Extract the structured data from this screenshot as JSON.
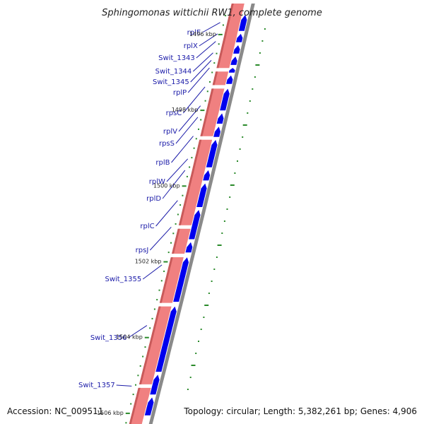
{
  "title": "Sphingomonas wittichii RW1, complete genome",
  "accession": "Accession: NC_009511",
  "topology": "Topology: circular; Length: 5,382,261 bp; Genes: 4,906",
  "colors": {
    "rrna_track": "#f08080",
    "rrna_edge": "#c85a5a",
    "gene_blue": "#0000ee",
    "backbone": "#8a8a8a",
    "tick_green": "#2a8a2a",
    "label_blue": "#1a1aa8"
  },
  "gene_labels": [
    {
      "name": "rplE",
      "kbp": 1495.7
    },
    {
      "name": "rplX",
      "kbp": 1496.0
    },
    {
      "name": "Swit_1343",
      "kbp": 1496.2
    },
    {
      "name": "Swit_1344",
      "kbp": 1496.5
    },
    {
      "name": "Swit_1345",
      "kbp": 1496.7
    },
    {
      "name": "rplP",
      "kbp": 1496.9
    },
    {
      "name": "rpsC",
      "kbp": 1497.4
    },
    {
      "name": "rplV",
      "kbp": 1497.9
    },
    {
      "name": "rpsS",
      "kbp": 1498.2
    },
    {
      "name": "rplB",
      "kbp": 1498.7
    },
    {
      "name": "rplW",
      "kbp": 1499.3
    },
    {
      "name": "rplD",
      "kbp": 1499.6
    },
    {
      "name": "rplC",
      "kbp": 1500.4
    },
    {
      "name": "rpsJ",
      "kbp": 1501.1
    },
    {
      "name": "Swit_1355",
      "kbp": 1502.1
    },
    {
      "name": "Swit_1356",
      "kbp": 1503.7
    },
    {
      "name": "Swit_1357",
      "kbp": 1505.3
    }
  ],
  "kbp_ticks": [
    {
      "label": "1496 kbp",
      "kbp": 1496
    },
    {
      "label": "1498 kbp",
      "kbp": 1498
    },
    {
      "label": "1500 kbp",
      "kbp": 1500
    },
    {
      "label": "1502 kbp",
      "kbp": 1502
    },
    {
      "label": "1504 kbp",
      "kbp": 1504
    },
    {
      "label": "1506 kbp",
      "kbp": 1506
    }
  ],
  "genes": [
    {
      "start": 1495.5,
      "end": 1495.95
    },
    {
      "start": 1496.0,
      "end": 1496.25
    },
    {
      "start": 1496.3,
      "end": 1496.55
    },
    {
      "start": 1496.6,
      "end": 1496.85
    },
    {
      "start": 1496.9,
      "end": 1497.05
    },
    {
      "start": 1497.1,
      "end": 1497.35
    },
    {
      "start": 1497.45,
      "end": 1498.05
    },
    {
      "start": 1498.1,
      "end": 1498.4
    },
    {
      "start": 1498.45,
      "end": 1498.75
    },
    {
      "start": 1498.8,
      "end": 1499.55
    },
    {
      "start": 1499.6,
      "end": 1499.9
    },
    {
      "start": 1499.95,
      "end": 1500.6
    },
    {
      "start": 1500.65,
      "end": 1501.45
    },
    {
      "start": 1501.5,
      "end": 1501.8
    },
    {
      "start": 1501.9,
      "end": 1503.1
    },
    {
      "start": 1503.2,
      "end": 1504.95
    },
    {
      "start": 1505.0,
      "end": 1505.55
    },
    {
      "start": 1505.6,
      "end": 1506.1
    }
  ],
  "track_breaks": [
    1496.95,
    1497.4,
    1498.75,
    1501.1,
    1501.85,
    1503.15,
    1505.3
  ]
}
